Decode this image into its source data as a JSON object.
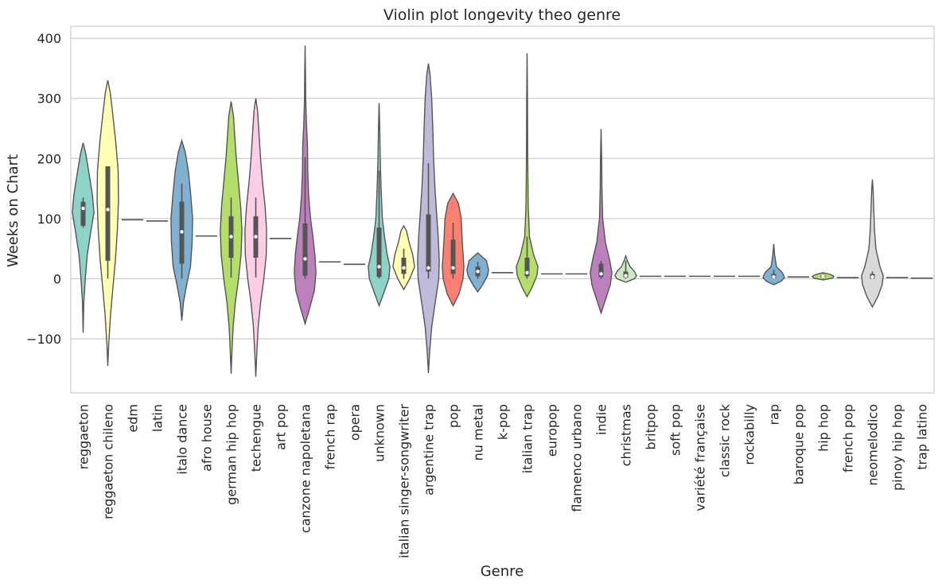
{
  "chart_data": {
    "type": "violin",
    "title": "Violin plot longevity theo genre",
    "xlabel": "Genre",
    "ylabel": "Weeks on Chart",
    "ylim": [
      -190,
      420
    ],
    "yticks": [
      -100,
      0,
      100,
      200,
      300,
      400
    ],
    "ytick_labels": [
      "−100",
      "0",
      "100",
      "200",
      "300",
      "400"
    ],
    "grid": true,
    "categories": [
      "reggaeton",
      "reggaeton chileno",
      "edm",
      "latin",
      "italo dance",
      "afro house",
      "german hip hop",
      "techengue",
      "art pop",
      "canzone napoletana",
      "french rap",
      "opera",
      "unknown",
      "italian singer-songwriter",
      "argentine trap",
      "pop",
      "nu metal",
      "k-pop",
      "italian trap",
      "europop",
      "flamenco urbano",
      "indie",
      "christmas",
      "britpop",
      "soft pop",
      "variété française",
      "classic rock",
      "rockabilly",
      "rap",
      "baroque pop",
      "hip hop",
      "french pop",
      "neomelodico",
      "pinoy hip hop",
      "trap latino"
    ],
    "colors": [
      "#8dd3c7",
      "#ffffb3",
      "#bebada",
      "#fb8072",
      "#80b1d3",
      "#fdb462",
      "#b3de69",
      "#fccde5",
      "#d9d9d9",
      "#bc80bd",
      "#ccebc5",
      "#ffed6f"
    ],
    "violins": [
      {
        "q1": 88,
        "median": 117,
        "q3": 128,
        "wlo": 85,
        "whi": 135,
        "profile": [
          [
            -90,
            0
          ],
          [
            -40,
            0.06
          ],
          [
            0,
            0.2
          ],
          [
            40,
            0.38
          ],
          [
            80,
            0.72
          ],
          [
            110,
            1
          ],
          [
            140,
            0.85
          ],
          [
            180,
            0.5
          ],
          [
            210,
            0.22
          ],
          [
            226,
            0
          ]
        ]
      },
      {
        "q1": 30,
        "median": 115,
        "q3": 187,
        "wlo": 0,
        "whi": 187,
        "profile": [
          [
            -145,
            0
          ],
          [
            -110,
            0.08
          ],
          [
            -60,
            0.25
          ],
          [
            -20,
            0.45
          ],
          [
            30,
            0.7
          ],
          [
            80,
            0.88
          ],
          [
            130,
            0.98
          ],
          [
            180,
            0.95
          ],
          [
            230,
            0.72
          ],
          [
            280,
            0.42
          ],
          [
            310,
            0.22
          ],
          [
            330,
            0
          ]
        ]
      },
      {
        "single": 98
      },
      {
        "single": 96
      },
      {
        "q1": 25,
        "median": 78,
        "q3": 128,
        "wlo": 0,
        "whi": 158,
        "profile": [
          [
            -70,
            0
          ],
          [
            -40,
            0.15
          ],
          [
            -10,
            0.45
          ],
          [
            20,
            0.8
          ],
          [
            60,
            0.95
          ],
          [
            100,
            1
          ],
          [
            140,
            0.82
          ],
          [
            180,
            0.6
          ],
          [
            210,
            0.32
          ],
          [
            230,
            0
          ]
        ]
      },
      {
        "single": 71
      },
      {
        "q1": 35,
        "median": 70,
        "q3": 104,
        "wlo": 2,
        "whi": 135,
        "profile": [
          [
            -158,
            0
          ],
          [
            -120,
            0.08
          ],
          [
            -80,
            0.18
          ],
          [
            -40,
            0.38
          ],
          [
            0,
            0.68
          ],
          [
            40,
            0.92
          ],
          [
            80,
            1
          ],
          [
            120,
            0.88
          ],
          [
            160,
            0.68
          ],
          [
            200,
            0.48
          ],
          [
            240,
            0.32
          ],
          [
            270,
            0.22
          ],
          [
            295,
            0
          ]
        ]
      },
      {
        "q1": 35,
        "median": 70,
        "q3": 104,
        "wlo": 2,
        "whi": 135,
        "profile": [
          [
            -163,
            0
          ],
          [
            -120,
            0.1
          ],
          [
            -80,
            0.22
          ],
          [
            -40,
            0.44
          ],
          [
            0,
            0.74
          ],
          [
            40,
            0.97
          ],
          [
            80,
            1
          ],
          [
            120,
            0.86
          ],
          [
            160,
            0.62
          ],
          [
            200,
            0.44
          ],
          [
            240,
            0.3
          ],
          [
            280,
            0.16
          ],
          [
            300,
            0
          ]
        ]
      },
      {
        "single": 67
      },
      {
        "q1": 5,
        "median": 33,
        "q3": 92,
        "wlo": 0,
        "whi": 202,
        "profile": [
          [
            -75,
            0
          ],
          [
            -50,
            0.4
          ],
          [
            -20,
            0.85
          ],
          [
            10,
            1
          ],
          [
            40,
            0.9
          ],
          [
            70,
            0.72
          ],
          [
            100,
            0.5
          ],
          [
            140,
            0.32
          ],
          [
            180,
            0.24
          ],
          [
            220,
            0.22
          ],
          [
            260,
            0.12
          ],
          [
            300,
            0.05
          ],
          [
            340,
            0.04
          ],
          [
            388,
            0
          ]
        ]
      },
      {
        "single": 28
      },
      {
        "single": 24
      },
      {
        "q1": 3,
        "median": 20,
        "q3": 85,
        "wlo": 0,
        "whi": 180,
        "profile": [
          [
            -45,
            0
          ],
          [
            -25,
            0.4
          ],
          [
            0,
            0.9
          ],
          [
            20,
            1
          ],
          [
            40,
            0.75
          ],
          [
            70,
            0.5
          ],
          [
            100,
            0.3
          ],
          [
            150,
            0.18
          ],
          [
            200,
            0.1
          ],
          [
            250,
            0.06
          ],
          [
            292,
            0
          ]
        ]
      },
      {
        "q1": 8,
        "median": 18,
        "q3": 35,
        "wlo": 0,
        "whi": 50,
        "profile": [
          [
            -18,
            0
          ],
          [
            0,
            0.55
          ],
          [
            20,
            1
          ],
          [
            40,
            0.82
          ],
          [
            60,
            0.5
          ],
          [
            80,
            0.25
          ],
          [
            88,
            0
          ]
        ]
      },
      {
        "q1": 12,
        "median": 18,
        "q3": 107,
        "wlo": 0,
        "whi": 192,
        "profile": [
          [
            -157,
            0
          ],
          [
            -120,
            0.12
          ],
          [
            -80,
            0.3
          ],
          [
            -40,
            0.62
          ],
          [
            0,
            0.95
          ],
          [
            30,
            1
          ],
          [
            70,
            0.9
          ],
          [
            110,
            0.75
          ],
          [
            150,
            0.6
          ],
          [
            200,
            0.48
          ],
          [
            250,
            0.4
          ],
          [
            300,
            0.3
          ],
          [
            340,
            0.15
          ],
          [
            358,
            0
          ]
        ]
      },
      {
        "q1": 8,
        "median": 18,
        "q3": 65,
        "wlo": 0,
        "whi": 93,
        "profile": [
          [
            -45,
            0
          ],
          [
            -25,
            0.55
          ],
          [
            0,
            0.92
          ],
          [
            20,
            1
          ],
          [
            60,
            0.85
          ],
          [
            100,
            0.75
          ],
          [
            125,
            0.5
          ],
          [
            142,
            0
          ]
        ]
      },
      {
        "q1": 4,
        "median": 12,
        "q3": 20,
        "wlo": 0,
        "whi": 28,
        "profile": [
          [
            -22,
            0
          ],
          [
            -10,
            0.45
          ],
          [
            5,
            0.9
          ],
          [
            15,
            1
          ],
          [
            30,
            0.8
          ],
          [
            43,
            0
          ]
        ]
      },
      {
        "single": 10
      },
      {
        "q1": 4,
        "median": 10,
        "q3": 35,
        "wlo": 0,
        "whi": 70,
        "profile": [
          [
            -30,
            0
          ],
          [
            -15,
            0.45
          ],
          [
            5,
            0.9
          ],
          [
            20,
            1
          ],
          [
            40,
            0.6
          ],
          [
            70,
            0.22
          ],
          [
            120,
            0.1
          ],
          [
            200,
            0.06
          ],
          [
            300,
            0.04
          ],
          [
            375,
            0
          ]
        ]
      },
      {
        "single": 8
      },
      {
        "single": 8
      },
      {
        "q1": 3,
        "median": 8,
        "q3": 25,
        "wlo": 0,
        "whi": 30,
        "profile": [
          [
            -57,
            0
          ],
          [
            -35,
            0.4
          ],
          [
            -10,
            0.85
          ],
          [
            10,
            1
          ],
          [
            30,
            0.8
          ],
          [
            60,
            0.4
          ],
          [
            100,
            0.15
          ],
          [
            150,
            0.08
          ],
          [
            200,
            0.05
          ],
          [
            249,
            0
          ]
        ]
      },
      {
        "q1": 2,
        "median": 5,
        "q3": 12,
        "wlo": 0,
        "whi": 30,
        "profile": [
          [
            -6,
            0
          ],
          [
            0,
            0.8
          ],
          [
            5,
            1
          ],
          [
            12,
            0.8
          ],
          [
            20,
            0.4
          ],
          [
            30,
            0.15
          ],
          [
            38,
            0
          ]
        ]
      },
      {
        "single": 4
      },
      {
        "single": 4
      },
      {
        "single": 4
      },
      {
        "single": 4
      },
      {
        "single": 4
      },
      {
        "q1": 1,
        "median": 3,
        "q3": 8,
        "wlo": 0,
        "whi": 15,
        "profile": [
          [
            -10,
            0
          ],
          [
            -4,
            0.7
          ],
          [
            2,
            1
          ],
          [
            10,
            0.8
          ],
          [
            20,
            0.25
          ],
          [
            40,
            0.08
          ],
          [
            58,
            0
          ]
        ]
      },
      {
        "single": 3
      },
      {
        "q1": 2,
        "median": 4,
        "q3": 6,
        "wlo": 0,
        "whi": 8,
        "profile": [
          [
            -2,
            0
          ],
          [
            1,
            0.85
          ],
          [
            4,
            1
          ],
          [
            7,
            0.7
          ],
          [
            10,
            0
          ]
        ]
      },
      {
        "single": 2
      },
      {
        "q1": 0,
        "median": 3,
        "q3": 8,
        "wlo": 0,
        "whi": 12,
        "profile": [
          [
            -47,
            0
          ],
          [
            -30,
            0.5
          ],
          [
            -10,
            0.9
          ],
          [
            5,
            1
          ],
          [
            20,
            0.7
          ],
          [
            50,
            0.32
          ],
          [
            80,
            0.2
          ],
          [
            120,
            0.12
          ],
          [
            150,
            0.06
          ],
          [
            165,
            0
          ]
        ]
      },
      {
        "single": 2
      },
      {
        "single": 1
      }
    ]
  }
}
